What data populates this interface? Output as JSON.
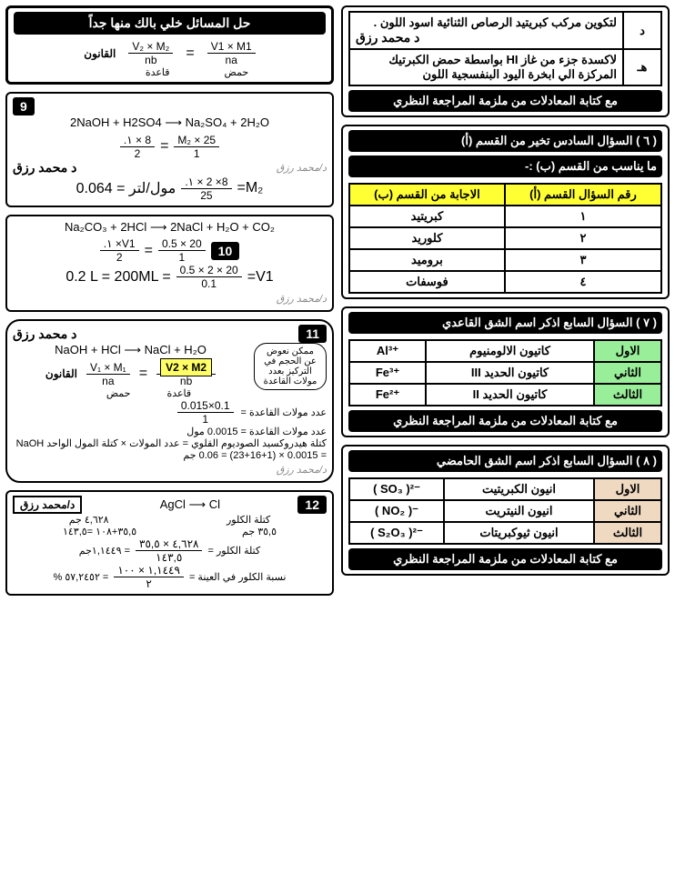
{
  "left": {
    "title": "حل المسائل خلي بالك منها جداً",
    "law_label": "القانون",
    "law_frac_left": {
      "num": "V₂ × M₂",
      "den": "nb"
    },
    "law_frac_left_under": "قاعدة",
    "law_frac_right": {
      "num": "V1 × M1",
      "den": "na"
    },
    "law_frac_right_under": "حمض",
    "p9": {
      "badge": "9",
      "reaction": "2NaOH + H2SO4  ⟶  Na₂SO₄ + 2H₂O",
      "line1_left": {
        "num": ".١ × 8",
        "den": "2"
      },
      "line1_right": {
        "num": "M₂ × 25",
        "den": "1"
      },
      "line2_left": "0.064 = مول/لتر",
      "line2_right": {
        "num": ".١ × 2 ×8",
        "den": "25"
      },
      "eq_res": "=M₂",
      "author": "د محمد رزق"
    },
    "p10": {
      "badge": "10",
      "reaction": "Na₂CO₃ + 2HCl  ⟶  2NaCl + H₂O + CO₂",
      "a": {
        "num": ".١ ×V1",
        "den": "2"
      },
      "b": {
        "num": "0.5 × 20",
        "den": "1"
      },
      "c": "0.2 L = 200ML =",
      "d": {
        "num": "0.5 × 2 × 20",
        "den": "0.1"
      },
      "res": "=V1"
    },
    "p11": {
      "badge": "11",
      "author": "د محمد رزق",
      "reaction": "NaOH + HCl  ⟶  NaCl + H₂O",
      "bubble": "ممكن نعوض عن الحجم في التركيز بعدد مولات القاعدة",
      "law_label": "القانون",
      "fa": {
        "num": "V₁ × M₁",
        "den": "na"
      },
      "fa_under": "حمض",
      "fb_box": "V2 × M2",
      "fb_den": "nb",
      "fb_under": "قاعدة",
      "line2_label": "عدد مولات القاعدة =",
      "line2": {
        "num": "0.015×0.1",
        "den": "1"
      },
      "line3": "عدد مولات القاعدة = 0.0015 مول",
      "line4": "كتلة هيدروكسيد الصوديوم القلوي = عدد المولات × كتلة المول الواحد NaOH",
      "line5": "= 0.0015 × (23+16+1) = 0.06 جم"
    },
    "p12": {
      "badge": "12",
      "author_box": "د/محمد رزق",
      "reaction": "AgCl  ⟶  Cl",
      "r1": "٤,٦٢٨ جم",
      "r2": "٣٥,٥+١٠٨ =١٤٣,٥",
      "l1": "كتلة الكلور",
      "l2": "٣٥,٥ جم",
      "calc_label": "كتلة الكلور =",
      "calc": {
        "num": "٤,٦٢٨ × ٣٥,٥",
        "den": "١٤٣,٥"
      },
      "calc_res": "= ١,١٤٤٩جم",
      "pct_label": "نسبة الكلور في العينة =",
      "pct": {
        "num": "١,١٤٤٩ × ١٠٠",
        "den": "٢"
      },
      "pct_res": "= ٥٧,٢٤٥٢ %"
    }
  },
  "right": {
    "top": {
      "d_label": "د",
      "d_text": "لتكوين مركب كبريتيد الرصاص الثنائية اسود اللون .",
      "d_author": "د محمد رزق",
      "h_label": "هـ",
      "h_text": "لاكسدة جزء من غاز HI بواسطة حمض الكبرتيك المركزة الي ابخرة اليود البنفسجية اللون",
      "footer": "مع كتابة المعادلات من ملزمة المراجعة النظري"
    },
    "q6": {
      "num": "( ٦ )",
      "title": "السؤال السادس  تخير من القسم (أ)",
      "subtitle": "ما يناسب من القسم (ب) :-",
      "th1": "رقم السؤال القسم (أ)",
      "th2": "الاجابة من القسم (ب)",
      "rows": [
        {
          "n": "١",
          "a": "كبريتيد"
        },
        {
          "n": "٢",
          "a": "كلوريد"
        },
        {
          "n": "٣",
          "a": "بروميد"
        },
        {
          "n": "٤",
          "a": "فوسفات"
        }
      ]
    },
    "q7": {
      "num": "( ٧ )",
      "title": "السؤال السابع  اذكر اسم الشق القاعدي",
      "rows": [
        {
          "k": "الاول",
          "name": "كاتيون الالومنيوم",
          "f": "Al³⁺"
        },
        {
          "k": "الثاني",
          "name": "كاتيون الحديد III",
          "f": "Fe³⁺"
        },
        {
          "k": "الثالث",
          "name": "كاتيون الحديد II",
          "f": "Fe²⁺"
        }
      ],
      "footer": "مع كتابة المعادلات من ملزمة المراجعة النظري"
    },
    "q8": {
      "num": "( ٨ )",
      "title": "السؤال السابع  اذكر اسم الشق الحامضي",
      "rows": [
        {
          "k": "الاول",
          "name": "انيون الكبريتيت",
          "f": "( SO₃ )²⁻"
        },
        {
          "k": "الثاني",
          "name": "انيون النيتريت",
          "f": "( NO₂ )⁻"
        },
        {
          "k": "الثالث",
          "name": "انيون ثيوكبريتات",
          "f": "( S₂O₃ )²⁻"
        }
      ],
      "footer": "مع كتابة المعادلات من ملزمة المراجعة النظري"
    }
  }
}
